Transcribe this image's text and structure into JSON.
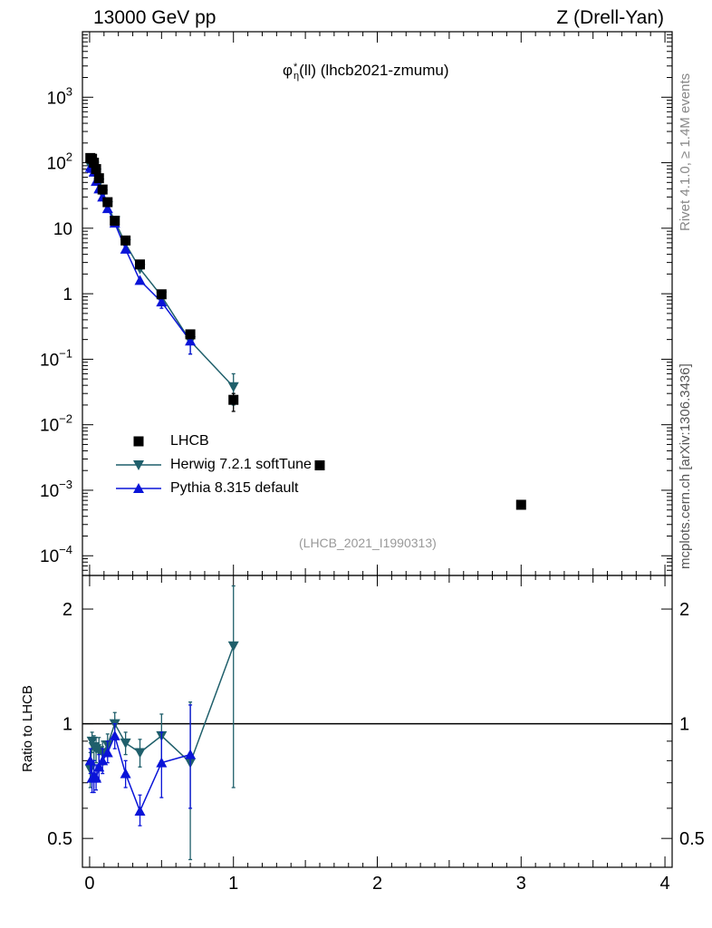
{
  "header": {
    "beam": "13000 GeV pp",
    "process": "Z (Drell-Yan)"
  },
  "side_labels": {
    "rivet": "Rivet 4.1.0, ≥ 1.4M events",
    "mcplots": "mcplots.cern.ch [arXiv:1306.3436]"
  },
  "colors": {
    "data": "#000000",
    "herwig": "#1f5f6b",
    "pythia": "#0a14d8",
    "ref_line": "#000000"
  },
  "chart_data": {
    "type": "scatter",
    "title": {
      "main": "φ",
      "sup": "*",
      "sub": "η",
      "rest": "(ll) (lhcb2021-zmumu)"
    },
    "analysis_id": "(LHCB_2021_I1990313)",
    "xlim": [
      -0.05,
      4.05
    ],
    "x_ticks": [
      0,
      1,
      2,
      3,
      4
    ],
    "main": {
      "yscale": "log",
      "ylim": [
        5e-05,
        10000
      ],
      "y_tick_labels": [
        {
          "v": 1000,
          "base": "10",
          "exp": "3"
        },
        {
          "v": 100,
          "base": "10",
          "exp": "2"
        },
        {
          "v": 10,
          "base": "10",
          "exp": ""
        },
        {
          "v": 1,
          "base": "1",
          "exp": ""
        },
        {
          "v": 0.1,
          "base": "10",
          "exp": "−1"
        },
        {
          "v": 0.01,
          "base": "10",
          "exp": "−2"
        },
        {
          "v": 0.001,
          "base": "10",
          "exp": "−3"
        },
        {
          "v": 0.0001,
          "base": "10",
          "exp": "−4"
        }
      ],
      "series": [
        {
          "name": "LHCB",
          "marker": "square",
          "line": false,
          "x": [
            0.005,
            0.017,
            0.03,
            0.045,
            0.065,
            0.09,
            0.125,
            0.175,
            0.25,
            0.35,
            0.5,
            0.7,
            1.0,
            1.6,
            3.0
          ],
          "y": [
            118,
            115,
            100,
            80,
            58,
            39,
            25,
            13,
            6.5,
            2.8,
            0.98,
            0.24,
            0.024,
            0.0024,
            0.0006
          ],
          "err_lo": [
            null,
            null,
            null,
            null,
            null,
            null,
            null,
            null,
            null,
            null,
            null,
            null,
            0.016,
            null,
            null
          ],
          "err_hi": [
            null,
            null,
            null,
            null,
            null,
            null,
            null,
            null,
            null,
            null,
            null,
            null,
            0.03,
            null,
            null
          ]
        },
        {
          "name": "Herwig 7.2.1 softTune",
          "marker": "triangle-down",
          "line": true,
          "x": [
            0.005,
            0.017,
            0.03,
            0.045,
            0.065,
            0.09,
            0.125,
            0.175,
            0.25,
            0.35,
            0.5,
            0.7,
            1.0
          ],
          "y": [
            90,
            100,
            88,
            69,
            49,
            33,
            22,
            13,
            5.8,
            2.4,
            0.92,
            0.19,
            0.038
          ],
          "err_lo": [
            null,
            null,
            null,
            null,
            null,
            null,
            null,
            null,
            null,
            null,
            null,
            0.12,
            0.02
          ],
          "err_hi": [
            null,
            null,
            null,
            null,
            null,
            null,
            null,
            null,
            null,
            null,
            null,
            0.26,
            0.06
          ]
        },
        {
          "name": "Pythia 8.315 default",
          "marker": "triangle-up",
          "line": true,
          "x": [
            0.005,
            0.017,
            0.03,
            0.045,
            0.065,
            0.09,
            0.125,
            0.175,
            0.25,
            0.35,
            0.5,
            0.7
          ],
          "y": [
            85,
            82,
            72,
            52,
            40,
            30,
            20,
            12,
            4.8,
            1.6,
            0.75,
            0.19
          ],
          "err_lo": [
            null,
            null,
            null,
            null,
            null,
            null,
            null,
            null,
            null,
            null,
            0.6,
            0.12
          ],
          "err_hi": [
            null,
            null,
            null,
            null,
            null,
            null,
            null,
            null,
            null,
            null,
            0.92,
            0.27
          ]
        }
      ]
    },
    "ratio": {
      "ylabel": "Ratio to LHCB",
      "yscale": "log",
      "ylim": [
        0.42,
        2.45
      ],
      "y_tick_labels": [
        {
          "v": 2,
          "label": "2"
        },
        {
          "v": 1,
          "label": "1"
        },
        {
          "v": 0.5,
          "label": "0.5"
        }
      ],
      "reference": 1,
      "series": [
        {
          "name": "Herwig 7.2.1 softTune",
          "x": [
            0.005,
            0.017,
            0.03,
            0.045,
            0.065,
            0.09,
            0.125,
            0.175,
            0.25,
            0.35,
            0.5,
            0.7,
            1.0
          ],
          "y": [
            0.76,
            0.9,
            0.87,
            0.86,
            0.85,
            0.84,
            0.88,
            1.0,
            0.89,
            0.84,
            0.93,
            0.79,
            1.6
          ],
          "err_lo": [
            0.68,
            0.84,
            0.8,
            0.79,
            0.78,
            0.78,
            0.82,
            0.93,
            0.83,
            0.77,
            0.8,
            0.44,
            0.68
          ],
          "err_hi": [
            0.84,
            0.95,
            0.93,
            0.92,
            0.92,
            0.9,
            0.94,
            1.07,
            0.95,
            0.91,
            1.06,
            1.14,
            2.3
          ]
        },
        {
          "name": "Pythia 8.315 default",
          "x": [
            0.005,
            0.017,
            0.03,
            0.045,
            0.065,
            0.09,
            0.125,
            0.175,
            0.25,
            0.35,
            0.5,
            0.7
          ],
          "y": [
            0.8,
            0.72,
            0.73,
            0.72,
            0.77,
            0.8,
            0.84,
            0.93,
            0.74,
            0.59,
            0.79,
            0.83
          ],
          "err_lo": [
            0.74,
            0.66,
            0.66,
            0.67,
            0.71,
            0.74,
            0.79,
            0.86,
            0.68,
            0.54,
            0.64,
            0.6
          ],
          "err_hi": [
            0.86,
            0.78,
            0.8,
            0.78,
            0.83,
            0.86,
            0.9,
            1.0,
            0.8,
            0.65,
            0.95,
            1.12
          ]
        }
      ]
    },
    "legend": {
      "position": "lower-left",
      "entries": [
        "LHCB",
        "Herwig 7.2.1 softTune",
        "Pythia 8.315 default"
      ]
    }
  }
}
